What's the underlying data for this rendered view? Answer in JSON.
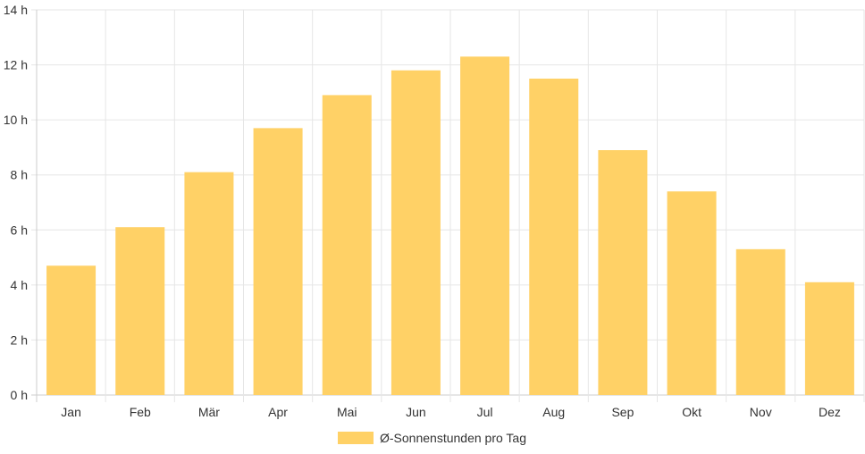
{
  "chart_data": {
    "type": "bar",
    "categories": [
      "Jan",
      "Feb",
      "Mär",
      "Apr",
      "Mai",
      "Jun",
      "Jul",
      "Aug",
      "Sep",
      "Okt",
      "Nov",
      "Dez"
    ],
    "series": [
      {
        "name": "Ø-Sonnenstunden pro Tag",
        "values": [
          4.7,
          6.1,
          8.1,
          9.7,
          10.9,
          11.8,
          12.3,
          11.5,
          8.9,
          7.4,
          5.3,
          4.1
        ],
        "color": "#FFD166"
      }
    ],
    "y_ticks": [
      "0 h",
      "2 h",
      "4 h",
      "6 h",
      "8 h",
      "10 h",
      "12 h",
      "14 h"
    ],
    "ylim": [
      0,
      14
    ],
    "y_unit": "h",
    "grid": true,
    "legend_position": "bottom",
    "colors": {
      "bar": "#FFD166",
      "grid": "#e6e6e6",
      "axis": "#cccccc",
      "text": "#333333"
    }
  }
}
